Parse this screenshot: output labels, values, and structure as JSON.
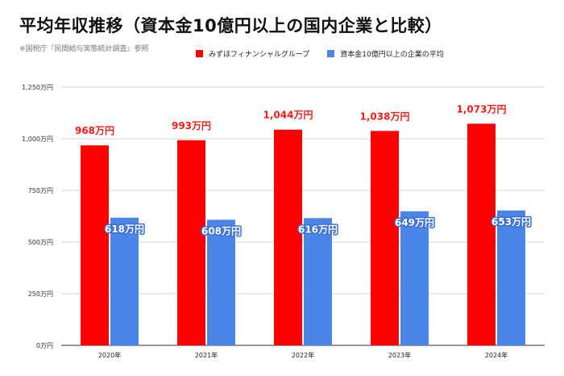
{
  "title": "平均年収推移（資本金10億円以上の国内企業と比較）",
  "source": "※国税庁『民間給与実態統計調査』参照",
  "colors": {
    "series1": "#ff0000",
    "series2": "#4a86e8",
    "grid": "#d9d9d9",
    "axis": "#333333"
  },
  "chart_data": {
    "type": "bar",
    "categories": [
      "2020年",
      "2021年",
      "2022年",
      "2023年",
      "2024年"
    ],
    "series": [
      {
        "name": "みずほフィナンシャルグループ",
        "values": [
          968,
          993,
          1044,
          1038,
          1073
        ],
        "labels": [
          "968万円",
          "993万円",
          "1,044万円",
          "1,038万円",
          "1,073万円"
        ]
      },
      {
        "name": "資本金10億円以上の企業の平均",
        "values": [
          618,
          608,
          616,
          649,
          653
        ],
        "labels": [
          "618万円",
          "608万円",
          "616万円",
          "649万円",
          "653万円"
        ]
      }
    ],
    "ylim": [
      0,
      1250
    ],
    "yticks": [
      0,
      250,
      500,
      750,
      1000,
      1250
    ],
    "ytick_labels": [
      "0万円",
      "250万円",
      "500万円",
      "750万円",
      "1,000万円",
      "1,250万円"
    ],
    "grid": true,
    "legend_position": "top"
  }
}
